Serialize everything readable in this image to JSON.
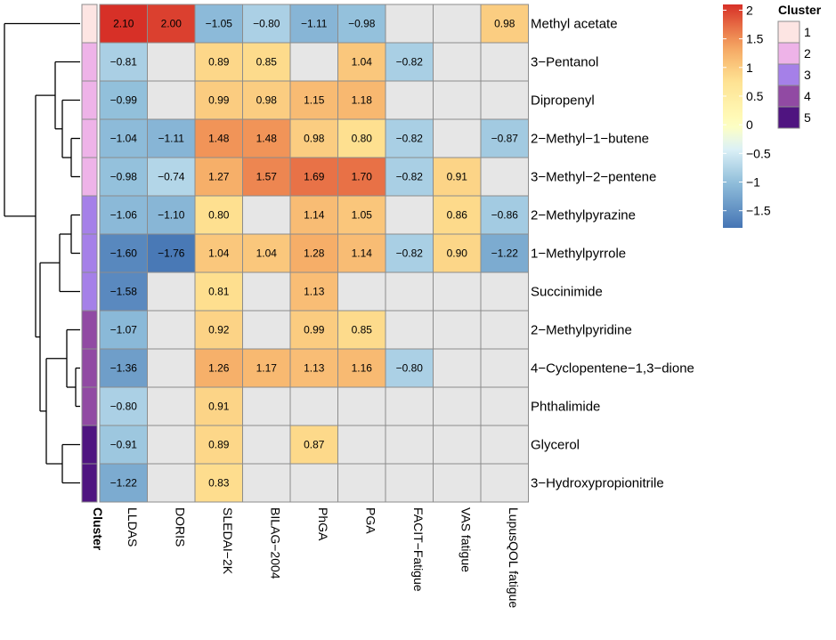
{
  "chart_data": {
    "type": "heatmap",
    "rows": [
      "Methyl acetate",
      "3−Pentanol",
      "Dipropenyl",
      "2−Methyl−1−butene",
      "3−Methyl−2−pentene",
      "2−Methylpyrazine",
      "1−Methylpyrrole",
      "Succinimide",
      "2−Methylpyridine",
      "4−Cyclopentene−1,3−dione",
      "Phthalimide",
      "Glycerol",
      "3−Hydroxypropionitrile"
    ],
    "columns": [
      "LLDAS",
      "DORIS",
      "SLEDAI−2K",
      "BILAG−2004",
      "PhGA",
      "PGA",
      "FACIT−Fatigue",
      "VAS fatigue",
      "LupusQOL fatigue"
    ],
    "values": [
      [
        2.1,
        2.0,
        -1.05,
        -0.8,
        -1.11,
        -0.98,
        null,
        null,
        0.98
      ],
      [
        -0.81,
        null,
        0.89,
        0.85,
        null,
        1.04,
        -0.82,
        null,
        null
      ],
      [
        -0.99,
        null,
        0.99,
        0.98,
        1.15,
        1.18,
        null,
        null,
        null
      ],
      [
        -1.04,
        -1.11,
        1.48,
        1.48,
        0.98,
        0.8,
        -0.82,
        null,
        -0.87
      ],
      [
        -0.98,
        -0.74,
        1.27,
        1.57,
        1.69,
        1.7,
        -0.82,
        0.91,
        null
      ],
      [
        -1.06,
        -1.1,
        0.8,
        null,
        1.14,
        1.05,
        null,
        0.86,
        -0.86
      ],
      [
        -1.6,
        -1.76,
        1.04,
        1.04,
        1.28,
        1.14,
        -0.82,
        0.9,
        -1.22
      ],
      [
        -1.58,
        null,
        0.81,
        null,
        1.13,
        null,
        null,
        null,
        null
      ],
      [
        -1.07,
        null,
        0.92,
        null,
        0.99,
        0.85,
        null,
        null,
        null
      ],
      [
        -1.36,
        null,
        1.26,
        1.17,
        1.13,
        1.16,
        -0.8,
        null,
        null
      ],
      [
        -0.8,
        null,
        0.91,
        null,
        null,
        null,
        null,
        null,
        null
      ],
      [
        -0.91,
        null,
        0.89,
        null,
        0.87,
        null,
        null,
        null,
        null
      ],
      [
        -1.22,
        null,
        0.83,
        null,
        null,
        null,
        null,
        null,
        null
      ]
    ],
    "row_clusters": [
      1,
      2,
      2,
      2,
      2,
      3,
      3,
      3,
      4,
      4,
      4,
      5,
      5
    ],
    "cluster_axis_label": "Cluster",
    "color_scale": {
      "range": [
        -1.8,
        2.1
      ],
      "ticks": [
        "2",
        "1.5",
        "1",
        "0.5",
        "0",
        "−0.5",
        "−1",
        "−1.5"
      ],
      "tick_values": [
        2,
        1.5,
        1,
        0.5,
        0,
        -0.5,
        -1,
        -1.5
      ],
      "stops": [
        {
          "v": -1.8,
          "color": "#4575b4"
        },
        {
          "v": -1.0,
          "color": "#91bfdb"
        },
        {
          "v": -0.4,
          "color": "#e0f3f8"
        },
        {
          "v": 0.0,
          "color": "#ffffbf"
        },
        {
          "v": 0.8,
          "color": "#fee090"
        },
        {
          "v": 1.4,
          "color": "#f4a15e"
        },
        {
          "v": 2.1,
          "color": "#d73027"
        }
      ],
      "na_color": "#e6e6e6"
    },
    "cluster_legend": {
      "title": "Cluster",
      "items": [
        {
          "label": "1",
          "color": "#fde5e3"
        },
        {
          "label": "2",
          "color": "#eeb3e8"
        },
        {
          "label": "3",
          "color": "#a580e8"
        },
        {
          "label": "4",
          "color": "#914aa3"
        },
        {
          "label": "5",
          "color": "#4f1480"
        }
      ]
    }
  }
}
